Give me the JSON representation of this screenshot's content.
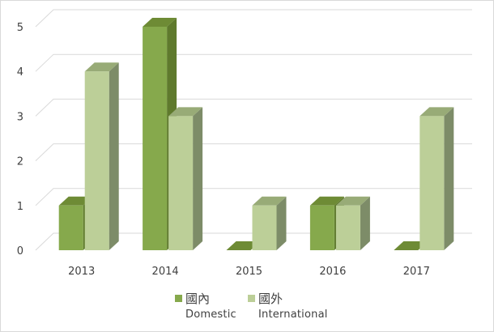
{
  "chart_data": {
    "type": "bar",
    "categories": [
      "2013",
      "2014",
      "2015",
      "2016",
      "2017"
    ],
    "series": [
      {
        "name": "國內",
        "name_en": "Domestic",
        "values": [
          1,
          5,
          0,
          1,
          0
        ]
      },
      {
        "name": "國外",
        "name_en": "International",
        "values": [
          4,
          3,
          1,
          1,
          3
        ]
      }
    ],
    "title": "",
    "xlabel": "",
    "ylabel": "",
    "ylim": [
      0,
      5
    ],
    "yticks": [
      "0",
      "1",
      "2",
      "3",
      "4",
      "5"
    ],
    "grid": true,
    "style": "3d-clustered-column",
    "legend_position": "bottom"
  },
  "colors": {
    "domestic_front": "#86a94c",
    "domestic_side": "#5f7a2d",
    "domestic_top": "#6e8b35",
    "international_front": "#bccf98",
    "international_side": "#7d8c68",
    "international_top": "#98ab77",
    "gridline": "#d9d9d9",
    "axis_text": "#404040"
  },
  "legend": [
    {
      "zh": "國內",
      "en": "Domestic",
      "color": "#86a94c"
    },
    {
      "zh": "國外",
      "en": "International",
      "color": "#bccf98"
    }
  ]
}
